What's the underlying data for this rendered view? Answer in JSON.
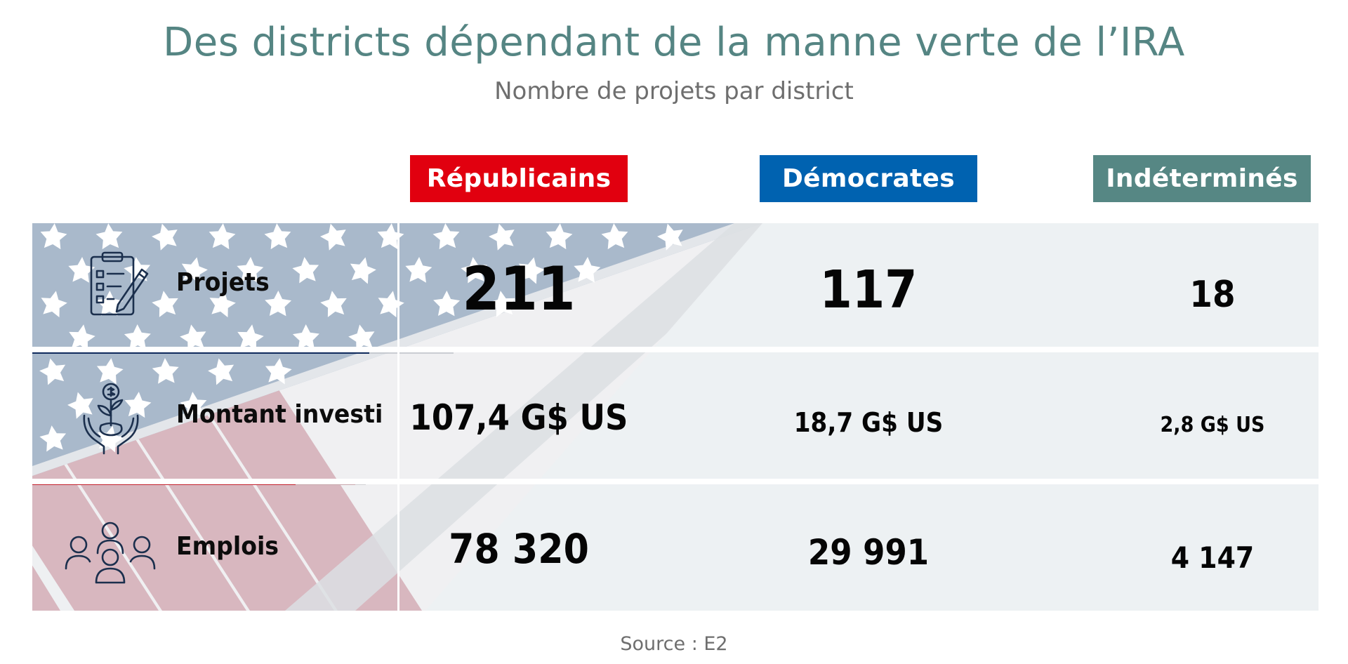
{
  "chart_data": {
    "type": "table",
    "title": "Des districts dépendant de la manne verte de l’IRA",
    "subtitle": "Nombre de projets par district",
    "columns": [
      {
        "name": "Républicains",
        "color": "#e1000f"
      },
      {
        "name": "Démocrates",
        "color": "#0062b0"
      },
      {
        "name": "Indéterminés",
        "color": "#568784"
      }
    ],
    "rows": [
      {
        "label": "Projets",
        "icon": "clipboard-checklist-icon",
        "values": [
          "211",
          "117",
          "18"
        ]
      },
      {
        "label": "Montant investi",
        "icon": "hands-plant-money-icon",
        "values": [
          "107,4 G$ US",
          "18,7 G$ US",
          "2,8 G$ US"
        ]
      },
      {
        "label": "Emplois",
        "icon": "people-group-icon",
        "values": [
          "78 320",
          "29 991",
          "4 147"
        ]
      }
    ],
    "source": "Source : E2"
  },
  "colors": {
    "title": "#558583",
    "table_background": "#edf1f3",
    "flag_blue": "#a9b9cb",
    "flag_red": "#d8b7bf",
    "flag_navy_line": "#0f2a5c",
    "flag_red_line": "#c2202d",
    "icon_stroke": "#1b2f4d"
  }
}
